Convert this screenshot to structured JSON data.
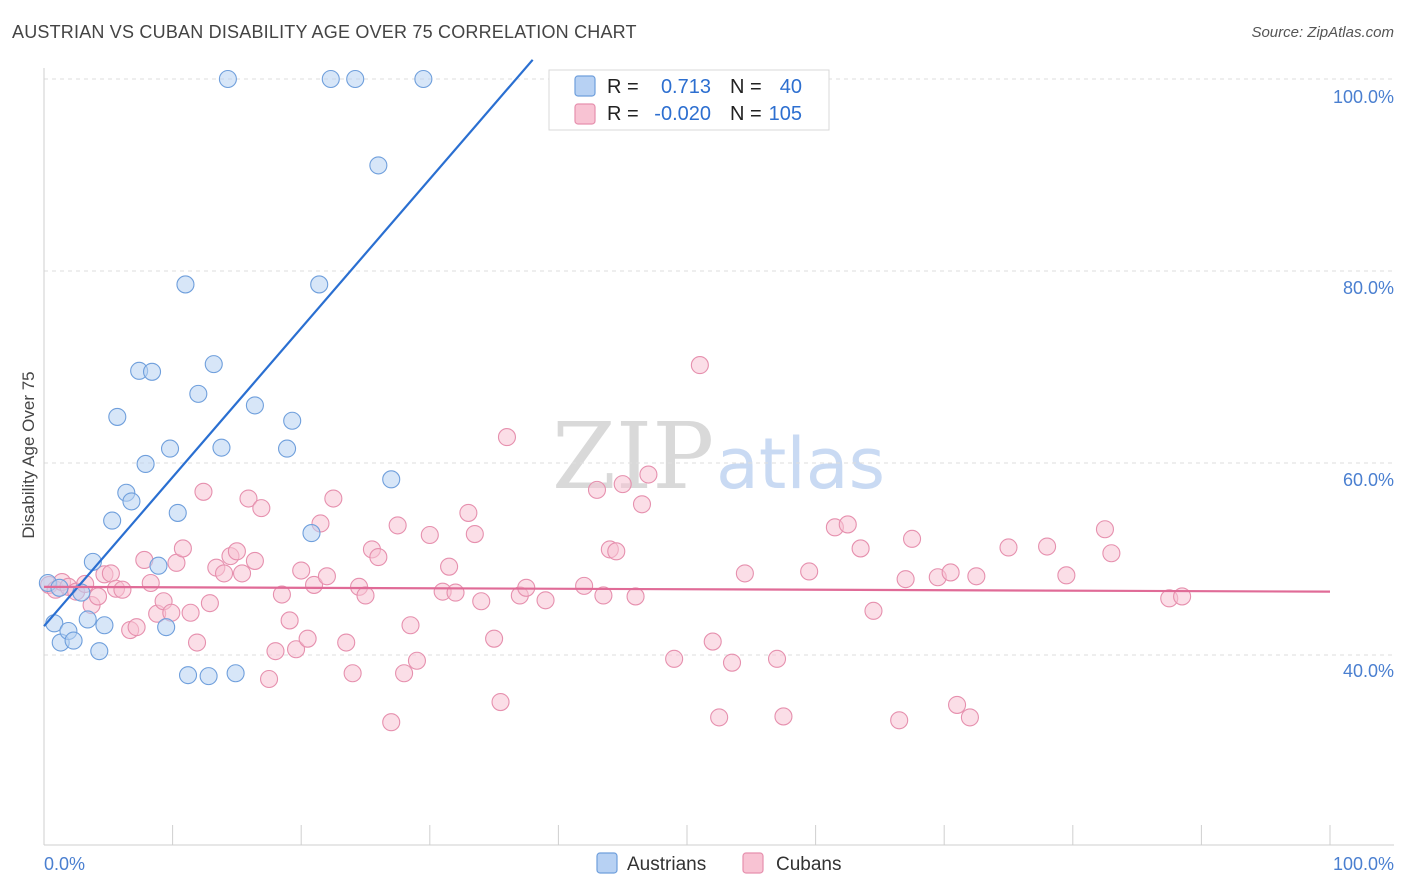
{
  "title": "AUSTRIAN VS CUBAN DISABILITY AGE OVER 75 CORRELATION CHART",
  "source": "Source: ZipAtlas.com",
  "watermark": {
    "zip": "ZIP",
    "atlas": "atlas"
  },
  "colors": {
    "austrians_fill": "#b7d1f3",
    "austrians_stroke": "#6f9fdc",
    "austrians_line": "#2a6fd1",
    "cubans_fill": "#f8c3d3",
    "cubans_stroke": "#e690ae",
    "cubans_line": "#e06b97",
    "axis_text": "#4a7fd0"
  },
  "legend": {
    "rows": [
      {
        "r_label": "R =",
        "r_value": "0.713",
        "n_label": "N =",
        "n_value": "40"
      },
      {
        "r_label": "R =",
        "r_value": "-0.020",
        "n_label": "N =",
        "n_value": "105"
      }
    ]
  },
  "bottom_legend": [
    "Austrians",
    "Cubans"
  ],
  "chart_data": {
    "type": "scatter",
    "title": "AUSTRIAN VS CUBAN DISABILITY AGE OVER 75 CORRELATION CHART",
    "xlabel": "",
    "ylabel": "Disability Age Over 75",
    "xlim": [
      0,
      100
    ],
    "ylim": [
      20,
      102
    ],
    "x_tick_labels": [
      "0.0%",
      "100.0%"
    ],
    "y_ticks": [
      40,
      60,
      80,
      100
    ],
    "y_tick_labels": [
      "40.0%",
      "60.0%",
      "80.0%",
      "100.0%"
    ],
    "grid": true,
    "legend_placement": "top-center",
    "series": [
      {
        "name": "Austrians",
        "r": 0.713,
        "n": 40,
        "trend": {
          "x": [
            0,
            38
          ],
          "y": [
            43.0,
            102.0
          ]
        },
        "points": [
          [
            0.3,
            47.5
          ],
          [
            1.2,
            47.0
          ],
          [
            2.9,
            46.5
          ],
          [
            0.8,
            43.3
          ],
          [
            1.3,
            41.3
          ],
          [
            1.9,
            42.5
          ],
          [
            2.3,
            41.5
          ],
          [
            3.4,
            43.7
          ],
          [
            3.8,
            49.7
          ],
          [
            4.3,
            40.4
          ],
          [
            4.7,
            43.1
          ],
          [
            5.3,
            54.0
          ],
          [
            5.7,
            64.8
          ],
          [
            6.4,
            56.9
          ],
          [
            6.8,
            56.0
          ],
          [
            7.4,
            69.6
          ],
          [
            7.9,
            59.9
          ],
          [
            8.4,
            69.5
          ],
          [
            8.9,
            49.3
          ],
          [
            9.5,
            42.9
          ],
          [
            9.8,
            61.5
          ],
          [
            10.4,
            54.8
          ],
          [
            11.0,
            78.6
          ],
          [
            11.2,
            37.9
          ],
          [
            12.0,
            67.2
          ],
          [
            12.8,
            37.8
          ],
          [
            13.2,
            70.3
          ],
          [
            13.8,
            61.6
          ],
          [
            14.3,
            100.0
          ],
          [
            14.9,
            38.1
          ],
          [
            16.4,
            66.0
          ],
          [
            18.9,
            61.5
          ],
          [
            19.3,
            64.4
          ],
          [
            20.8,
            52.7
          ],
          [
            21.4,
            78.6
          ],
          [
            22.3,
            100.0
          ],
          [
            24.2,
            100.0
          ],
          [
            26.0,
            91.0
          ],
          [
            27.0,
            58.3
          ],
          [
            29.5,
            100.0
          ]
        ]
      },
      {
        "name": "Cubans",
        "r": -0.02,
        "n": 105,
        "trend": {
          "x": [
            0,
            100
          ],
          "y": [
            47.1,
            46.6
          ]
        },
        "points": [
          [
            0.4,
            47.3
          ],
          [
            0.9,
            46.8
          ],
          [
            1.4,
            47.6
          ],
          [
            1.9,
            47.1
          ],
          [
            2.5,
            46.6
          ],
          [
            3.2,
            47.4
          ],
          [
            3.7,
            45.2
          ],
          [
            4.2,
            46.1
          ],
          [
            4.7,
            48.4
          ],
          [
            5.2,
            48.5
          ],
          [
            5.6,
            46.9
          ],
          [
            6.1,
            46.8
          ],
          [
            6.7,
            42.6
          ],
          [
            7.2,
            42.9
          ],
          [
            7.8,
            49.9
          ],
          [
            8.3,
            47.5
          ],
          [
            8.8,
            44.3
          ],
          [
            9.3,
            45.6
          ],
          [
            9.9,
            44.4
          ],
          [
            10.3,
            49.6
          ],
          [
            10.8,
            51.1
          ],
          [
            11.4,
            44.4
          ],
          [
            11.9,
            41.3
          ],
          [
            12.4,
            57.0
          ],
          [
            12.9,
            45.4
          ],
          [
            13.4,
            49.1
          ],
          [
            14.0,
            48.5
          ],
          [
            14.5,
            50.3
          ],
          [
            15.0,
            50.8
          ],
          [
            15.4,
            48.5
          ],
          [
            15.9,
            56.3
          ],
          [
            16.4,
            49.8
          ],
          [
            16.9,
            55.3
          ],
          [
            17.5,
            37.5
          ],
          [
            18.0,
            40.4
          ],
          [
            18.5,
            46.3
          ],
          [
            19.1,
            43.6
          ],
          [
            19.6,
            40.6
          ],
          [
            20.0,
            48.8
          ],
          [
            20.5,
            41.7
          ],
          [
            21.0,
            47.3
          ],
          [
            21.5,
            53.7
          ],
          [
            22.0,
            48.2
          ],
          [
            22.5,
            56.3
          ],
          [
            23.5,
            41.3
          ],
          [
            24.0,
            38.1
          ],
          [
            24.5,
            47.1
          ],
          [
            25.0,
            46.2
          ],
          [
            25.5,
            51.0
          ],
          [
            26.0,
            50.2
          ],
          [
            27.0,
            33.0
          ],
          [
            27.5,
            53.5
          ],
          [
            28.0,
            38.1
          ],
          [
            28.5,
            43.1
          ],
          [
            29.0,
            39.4
          ],
          [
            30.0,
            52.5
          ],
          [
            31.0,
            46.6
          ],
          [
            31.5,
            49.2
          ],
          [
            32.0,
            46.5
          ],
          [
            33.0,
            54.8
          ],
          [
            33.5,
            52.6
          ],
          [
            34.0,
            45.6
          ],
          [
            35.0,
            41.7
          ],
          [
            35.5,
            35.1
          ],
          [
            36.0,
            62.7
          ],
          [
            37.0,
            46.2
          ],
          [
            37.5,
            47.0
          ],
          [
            39.0,
            45.7
          ],
          [
            42.0,
            47.2
          ],
          [
            43.0,
            57.2
          ],
          [
            43.5,
            46.2
          ],
          [
            44.0,
            51.0
          ],
          [
            44.5,
            50.8
          ],
          [
            45.0,
            57.8
          ],
          [
            46.0,
            46.1
          ],
          [
            46.5,
            55.7
          ],
          [
            47.0,
            58.8
          ],
          [
            49.0,
            39.6
          ],
          [
            51.0,
            70.2
          ],
          [
            52.0,
            41.4
          ],
          [
            52.5,
            33.5
          ],
          [
            53.5,
            39.2
          ],
          [
            54.5,
            48.5
          ],
          [
            57.0,
            39.6
          ],
          [
            57.5,
            33.6
          ],
          [
            59.5,
            48.7
          ],
          [
            61.5,
            53.3
          ],
          [
            62.5,
            53.6
          ],
          [
            63.5,
            51.1
          ],
          [
            64.5,
            44.6
          ],
          [
            66.5,
            33.2
          ],
          [
            67.0,
            47.9
          ],
          [
            67.5,
            52.1
          ],
          [
            69.5,
            48.1
          ],
          [
            70.5,
            48.6
          ],
          [
            71.0,
            34.8
          ],
          [
            72.0,
            33.5
          ],
          [
            72.5,
            48.2
          ],
          [
            75.0,
            51.2
          ],
          [
            78.0,
            51.3
          ],
          [
            79.5,
            48.3
          ],
          [
            82.5,
            53.1
          ],
          [
            83.0,
            50.6
          ],
          [
            87.5,
            45.9
          ],
          [
            88.5,
            46.1
          ]
        ]
      }
    ]
  }
}
